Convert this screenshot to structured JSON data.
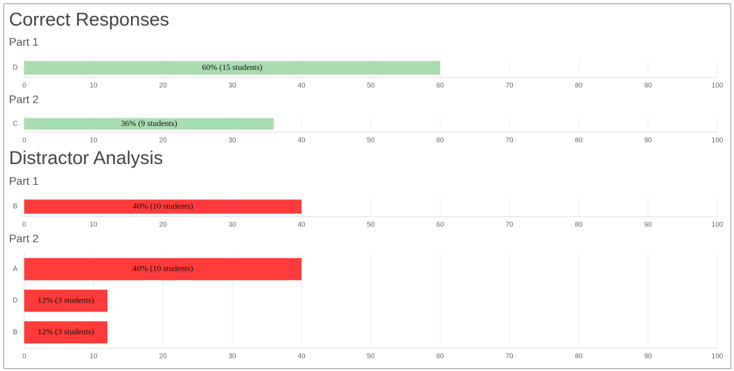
{
  "chart_data": [
    {
      "type": "bar",
      "orientation": "horizontal",
      "heading": "Correct Responses",
      "title": "Part 1",
      "categories": [
        "D"
      ],
      "values": [
        60
      ],
      "value_labels": [
        "60% (15 students)"
      ],
      "color": "#a8ddb0",
      "xlim": [
        0,
        100
      ],
      "xticks": [
        0,
        10,
        20,
        30,
        40,
        50,
        60,
        70,
        80,
        90,
        100
      ],
      "grid": true
    },
    {
      "type": "bar",
      "orientation": "horizontal",
      "title": "Part 2",
      "categories": [
        "C"
      ],
      "values": [
        36
      ],
      "value_labels": [
        "36% (9 students)"
      ],
      "color": "#a8ddb0",
      "xlim": [
        0,
        100
      ],
      "xticks": [
        0,
        10,
        20,
        30,
        40,
        50,
        60,
        70,
        80,
        90,
        100
      ],
      "grid": true
    },
    {
      "type": "bar",
      "orientation": "horizontal",
      "heading": "Distractor Analysis",
      "title": "Part 1",
      "categories": [
        "B"
      ],
      "values": [
        40
      ],
      "value_labels": [
        "40% (10 students)"
      ],
      "color": "#ff3b3b",
      "xlim": [
        0,
        100
      ],
      "xticks": [
        0,
        10,
        20,
        30,
        40,
        50,
        60,
        70,
        80,
        90,
        100
      ],
      "grid": true
    },
    {
      "type": "bar",
      "orientation": "horizontal",
      "title": "Part 2",
      "categories": [
        "A",
        "D",
        "B"
      ],
      "values": [
        40,
        12,
        12
      ],
      "value_labels": [
        "40% (10 students)",
        "12% (3 students)",
        "12% (3 students)"
      ],
      "color": "#ff3b3b",
      "xlim": [
        0,
        100
      ],
      "xticks": [
        0,
        10,
        20,
        30,
        40,
        50,
        60,
        70,
        80,
        90,
        100
      ],
      "grid": true
    }
  ]
}
